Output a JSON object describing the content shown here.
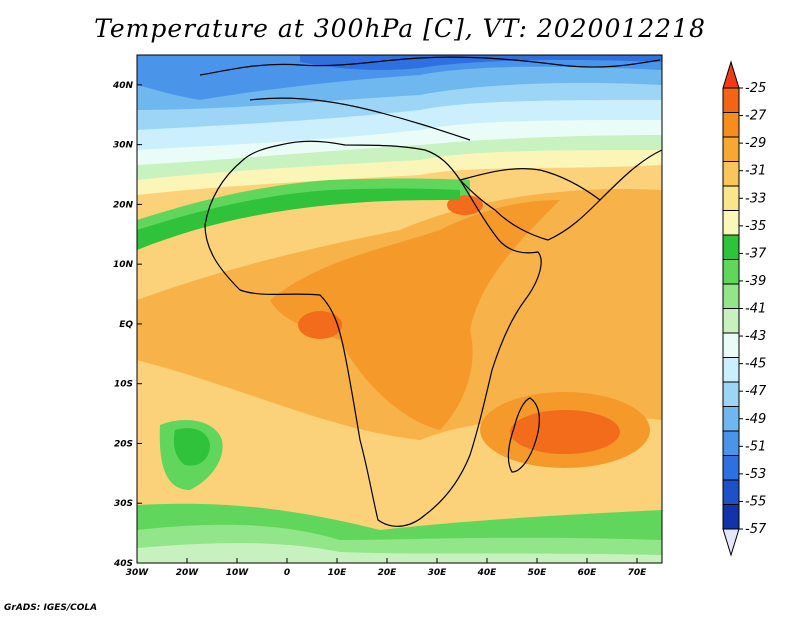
{
  "title": "Temperature at 300hPa [C], VT: 2020012218",
  "credit": "GrADS: IGES/COLA",
  "map": {
    "variable": "Temperature",
    "level": "300hPa",
    "units": "C",
    "valid_time": "2020012218",
    "lon_range": [
      -30,
      75
    ],
    "lat_range": [
      -40,
      45
    ],
    "lat_ticks": [
      "40N",
      "30N",
      "20N",
      "10N",
      "EQ",
      "10S",
      "20S",
      "30S",
      "40S"
    ],
    "lon_ticks": [
      "30W",
      "20W",
      "10W",
      "0",
      "10E",
      "20E",
      "30E",
      "40E",
      "50E",
      "60E",
      "70E"
    ]
  },
  "colorbar": {
    "labels": [
      "-25",
      "-27",
      "-29",
      "-31",
      "-33",
      "-35",
      "-37",
      "-39",
      "-41",
      "-43",
      "-45",
      "-47",
      "-49",
      "-51",
      "-53",
      "-55",
      "-57"
    ],
    "colors_warm_to_cold": [
      "#f03c14",
      "#f36416",
      "#f78c1f",
      "#f7a833",
      "#f8c65a",
      "#fae48c",
      "#fbf7b8",
      "#2fc23a",
      "#60d75c",
      "#93e58a",
      "#c7f2bf",
      "#eafcf8",
      "#cbeffc",
      "#9dd5f6",
      "#6fb7ef",
      "#4a95ea",
      "#2f70e0",
      "#1e50c8",
      "#1333a8",
      "#06107a"
    ]
  }
}
